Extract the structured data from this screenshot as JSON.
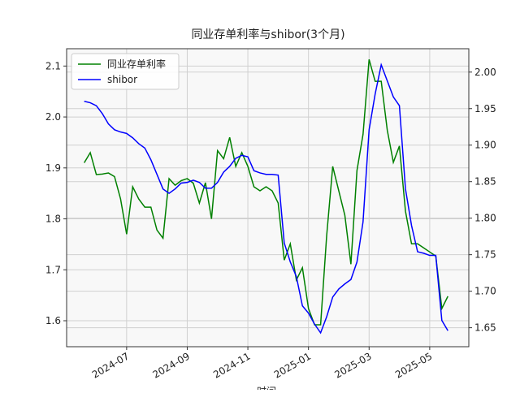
{
  "chart_data": {
    "type": "line",
    "title": "同业存单利率与shibor(3个月)",
    "x_label": "时间",
    "x": [
      5.6,
      5.8,
      6.0,
      6.2,
      6.4,
      6.6,
      6.8,
      7.0,
      7.2,
      7.4,
      7.6,
      7.8,
      8.0,
      8.2,
      8.4,
      8.6,
      8.8,
      9.0,
      9.2,
      9.4,
      9.6,
      9.8,
      10.0,
      10.2,
      10.4,
      10.6,
      10.8,
      11.0,
      11.2,
      11.4,
      11.6,
      11.8,
      12.0,
      12.2,
      12.4,
      12.6,
      12.8,
      13.0,
      13.2,
      13.4,
      13.6,
      13.8,
      14.0,
      14.2,
      14.4,
      14.6,
      14.8,
      15.0,
      15.2,
      15.4,
      15.6,
      15.8,
      16.0,
      16.2,
      16.4,
      16.6,
      16.8,
      17.0,
      17.2,
      17.4,
      17.6
    ],
    "series": [
      {
        "name": "同业存单利率",
        "color": "#008000",
        "values": [
          1.91,
          1.93,
          1.887,
          1.888,
          1.89,
          1.883,
          1.839,
          1.77,
          1.863,
          1.839,
          1.823,
          1.823,
          1.778,
          1.762,
          1.879,
          1.866,
          1.875,
          1.879,
          1.87,
          1.831,
          1.871,
          1.8,
          1.934,
          1.918,
          1.96,
          1.903,
          1.93,
          1.903,
          1.863,
          1.855,
          1.863,
          1.855,
          1.831,
          1.719,
          1.751,
          1.68,
          1.704,
          1.624,
          1.592,
          1.592,
          1.767,
          1.903,
          1.855,
          1.807,
          1.711,
          1.895,
          1.966,
          2.113,
          2.07,
          2.07,
          1.974,
          1.911,
          1.943,
          1.815,
          1.751,
          1.751,
          1.743,
          1.735,
          1.727,
          1.624,
          1.648
        ]
      },
      {
        "name": "shibor",
        "color": "#0000ff",
        "axis": "y2",
        "values": [
          1.96,
          1.958,
          1.954,
          1.943,
          1.929,
          1.921,
          1.918,
          1.916,
          1.91,
          1.902,
          1.896,
          1.88,
          1.86,
          1.84,
          1.834,
          1.84,
          1.848,
          1.849,
          1.852,
          1.849,
          1.841,
          1.841,
          1.849,
          1.863,
          1.871,
          1.882,
          1.886,
          1.884,
          1.865,
          1.862,
          1.86,
          1.86,
          1.859,
          1.766,
          1.74,
          1.72,
          1.68,
          1.67,
          1.655,
          1.643,
          1.665,
          1.692,
          1.703,
          1.71,
          1.716,
          1.74,
          1.795,
          1.921,
          1.97,
          2.01,
          1.988,
          1.966,
          1.954,
          1.84,
          1.79,
          1.754,
          1.752,
          1.749,
          1.749,
          1.66,
          1.646
        ]
      }
    ],
    "xlim": [
      5.02,
      18.29
    ],
    "xticks": [
      {
        "value": 7,
        "label": "2024-07"
      },
      {
        "value": 9,
        "label": "2024-09"
      },
      {
        "value": 11,
        "label": "2024-11"
      },
      {
        "value": 13,
        "label": "2025-01"
      },
      {
        "value": 15,
        "label": "2025-03"
      },
      {
        "value": 17,
        "label": "2025-05"
      }
    ],
    "ylim": [
      1.549,
      2.134
    ],
    "yticks": [
      1.6,
      1.7,
      1.8,
      1.9,
      {
        "value": 2,
        "label": "2.0"
      },
      2.1
    ],
    "y2lim": [
      1.624,
      2.032
    ],
    "y2ticks": [
      1.65,
      {
        "value": 1.7,
        "label": "1.70"
      },
      1.75,
      {
        "value": 1.8,
        "label": "1.80"
      },
      1.85,
      {
        "value": 1.9,
        "label": "1.90"
      },
      1.95,
      {
        "value": 2,
        "label": "2.00"
      }
    ],
    "grid": true,
    "legend": "upper left"
  }
}
